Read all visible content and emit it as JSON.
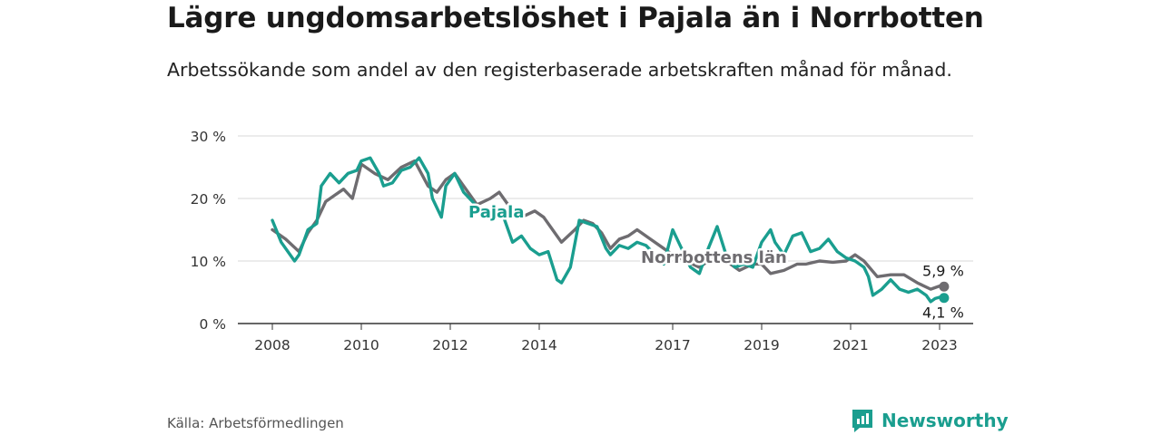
{
  "title": "Lägre ungdomsarbetslöshet i Pajala än i Norrbotten",
  "subtitle": "Arbetssökande som andel av den registerbaserade arbetskraften månad för månad.",
  "source": "Källa: Arbetsförmedlingen",
  "brand": {
    "name": "Newsworthy",
    "icon": "newsworthy-logo-icon",
    "color": "#1a9e8f"
  },
  "chart_data": {
    "type": "line",
    "title": "Lägre ungdomsarbetslöshet i Pajala än i Norrbotten",
    "xlabel": "",
    "ylabel": "",
    "ylim": [
      0,
      30
    ],
    "xlim": [
      2008,
      2023.4
    ],
    "grid": true,
    "y_ticks": [
      0,
      10,
      20,
      30
    ],
    "y_tick_labels": [
      "0 %",
      "10 %",
      "20 %",
      "30 %"
    ],
    "x_ticks": [
      2008,
      2010,
      2012,
      2014,
      2017,
      2019,
      2021,
      2023
    ],
    "x_tick_labels": [
      "2008",
      "2010",
      "2012",
      "2014",
      "2017",
      "2019",
      "2021",
      "2023"
    ],
    "series": [
      {
        "name": "Norrbottens län",
        "color": "#6e6c70",
        "end_label": "5,9 %",
        "end_value": 5.9,
        "points": [
          [
            2008.0,
            15.0
          ],
          [
            2008.3,
            13.5
          ],
          [
            2008.6,
            11.5
          ],
          [
            2008.8,
            14.5
          ],
          [
            2009.0,
            16.5
          ],
          [
            2009.2,
            19.5
          ],
          [
            2009.4,
            20.5
          ],
          [
            2009.6,
            21.5
          ],
          [
            2009.8,
            20.0
          ],
          [
            2010.0,
            25.5
          ],
          [
            2010.3,
            24.0
          ],
          [
            2010.6,
            23.0
          ],
          [
            2010.9,
            25.0
          ],
          [
            2011.2,
            26.0
          ],
          [
            2011.5,
            22.0
          ],
          [
            2011.7,
            21.0
          ],
          [
            2011.9,
            23.0
          ],
          [
            2012.1,
            24.0
          ],
          [
            2012.3,
            22.0
          ],
          [
            2012.6,
            19.0
          ],
          [
            2012.9,
            20.0
          ],
          [
            2013.1,
            21.0
          ],
          [
            2013.3,
            19.0
          ],
          [
            2013.6,
            17.0
          ],
          [
            2013.9,
            18.0
          ],
          [
            2014.1,
            17.0
          ],
          [
            2014.3,
            15.0
          ],
          [
            2014.5,
            13.0
          ],
          [
            2014.8,
            15.0
          ],
          [
            2015.0,
            16.5
          ],
          [
            2015.2,
            16.0
          ],
          [
            2015.4,
            14.5
          ],
          [
            2015.6,
            12.0
          ],
          [
            2015.8,
            13.5
          ],
          [
            2016.0,
            14.0
          ],
          [
            2016.2,
            15.0
          ],
          [
            2016.5,
            13.5
          ],
          [
            2016.8,
            12.0
          ],
          [
            2017.0,
            11.0
          ],
          [
            2017.3,
            10.0
          ],
          [
            2017.6,
            9.0
          ],
          [
            2017.9,
            10.5
          ],
          [
            2018.2,
            10.0
          ],
          [
            2018.5,
            8.5
          ],
          [
            2018.8,
            9.5
          ],
          [
            2019.0,
            9.5
          ],
          [
            2019.2,
            8.0
          ],
          [
            2019.5,
            8.5
          ],
          [
            2019.8,
            9.5
          ],
          [
            2020.0,
            9.5
          ],
          [
            2020.3,
            10.0
          ],
          [
            2020.6,
            9.8
          ],
          [
            2020.9,
            10.0
          ],
          [
            2021.1,
            11.0
          ],
          [
            2021.3,
            10.0
          ],
          [
            2021.6,
            7.5
          ],
          [
            2021.9,
            7.8
          ],
          [
            2022.2,
            7.8
          ],
          [
            2022.5,
            6.5
          ],
          [
            2022.8,
            5.5
          ],
          [
            2023.0,
            6.0
          ],
          [
            2023.1,
            5.9
          ]
        ]
      },
      {
        "name": "Pajala",
        "color": "#1a9e8f",
        "end_label": "4,1 %",
        "end_value": 4.1,
        "points": [
          [
            2008.0,
            16.5
          ],
          [
            2008.2,
            13.0
          ],
          [
            2008.4,
            11.0
          ],
          [
            2008.5,
            10.0
          ],
          [
            2008.6,
            11.0
          ],
          [
            2008.8,
            15.0
          ],
          [
            2009.0,
            16.0
          ],
          [
            2009.1,
            22.0
          ],
          [
            2009.3,
            24.0
          ],
          [
            2009.5,
            22.5
          ],
          [
            2009.7,
            24.0
          ],
          [
            2009.9,
            24.5
          ],
          [
            2010.0,
            26.0
          ],
          [
            2010.2,
            26.5
          ],
          [
            2010.4,
            24.0
          ],
          [
            2010.5,
            22.0
          ],
          [
            2010.7,
            22.5
          ],
          [
            2010.9,
            24.5
          ],
          [
            2011.1,
            25.0
          ],
          [
            2011.3,
            26.5
          ],
          [
            2011.5,
            24.0
          ],
          [
            2011.6,
            20.0
          ],
          [
            2011.8,
            17.0
          ],
          [
            2011.9,
            22.0
          ],
          [
            2012.1,
            24.0
          ],
          [
            2012.3,
            21.0
          ],
          [
            2012.5,
            19.5
          ],
          [
            2012.8,
            17.0
          ],
          [
            2013.0,
            18.0
          ],
          [
            2013.2,
            17.0
          ],
          [
            2013.4,
            13.0
          ],
          [
            2013.6,
            14.0
          ],
          [
            2013.8,
            12.0
          ],
          [
            2014.0,
            11.0
          ],
          [
            2014.2,
            11.5
          ],
          [
            2014.4,
            7.0
          ],
          [
            2014.5,
            6.5
          ],
          [
            2014.7,
            9.0
          ],
          [
            2014.9,
            16.5
          ],
          [
            2015.1,
            16.0
          ],
          [
            2015.3,
            15.5
          ],
          [
            2015.5,
            12.0
          ],
          [
            2015.6,
            11.0
          ],
          [
            2015.8,
            12.5
          ],
          [
            2016.0,
            12.0
          ],
          [
            2016.2,
            13.0
          ],
          [
            2016.4,
            12.5
          ],
          [
            2016.6,
            11.0
          ],
          [
            2016.8,
            9.5
          ],
          [
            2017.0,
            15.0
          ],
          [
            2017.2,
            12.0
          ],
          [
            2017.4,
            9.0
          ],
          [
            2017.6,
            8.0
          ],
          [
            2017.8,
            12.0
          ],
          [
            2018.0,
            15.5
          ],
          [
            2018.2,
            11.0
          ],
          [
            2018.4,
            9.0
          ],
          [
            2018.6,
            9.5
          ],
          [
            2018.8,
            9.0
          ],
          [
            2019.0,
            13.0
          ],
          [
            2019.2,
            15.0
          ],
          [
            2019.3,
            13.0
          ],
          [
            2019.5,
            11.0
          ],
          [
            2019.7,
            14.0
          ],
          [
            2019.9,
            14.5
          ],
          [
            2020.1,
            11.5
          ],
          [
            2020.3,
            12.0
          ],
          [
            2020.5,
            13.5
          ],
          [
            2020.7,
            11.5
          ],
          [
            2020.9,
            10.5
          ],
          [
            2021.1,
            10.0
          ],
          [
            2021.3,
            9.0
          ],
          [
            2021.4,
            7.5
          ],
          [
            2021.5,
            4.5
          ],
          [
            2021.7,
            5.5
          ],
          [
            2021.9,
            7.0
          ],
          [
            2022.1,
            5.5
          ],
          [
            2022.3,
            5.0
          ],
          [
            2022.5,
            5.5
          ],
          [
            2022.7,
            4.5
          ],
          [
            2022.8,
            3.5
          ],
          [
            2022.9,
            4.0
          ],
          [
            2023.0,
            4.2
          ],
          [
            2023.1,
            4.1
          ]
        ]
      }
    ],
    "annotations": [
      {
        "text": "Pajala",
        "series": "Pajala"
      },
      {
        "text": "Norrbottens län",
        "series": "Norrbottens län"
      }
    ]
  }
}
